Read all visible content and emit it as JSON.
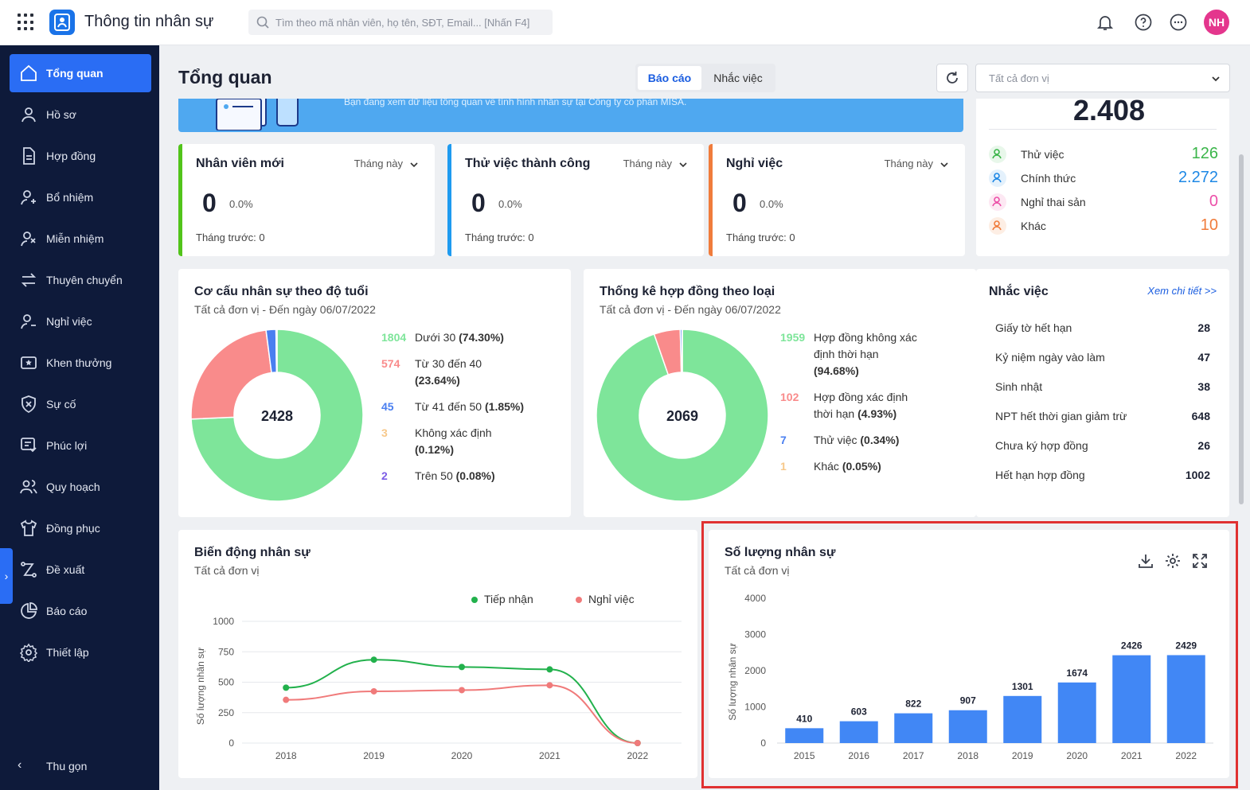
{
  "app": {
    "title": "Thông tin nhân sự",
    "avatar_initials": "NH",
    "avatar_color": "#e4368d"
  },
  "search": {
    "placeholder": "Tìm theo mã nhân viên, họ tên, SĐT, Email... [Nhấn F4]"
  },
  "sidebar": {
    "items": [
      {
        "label": "Tổng quan",
        "icon": "home-icon",
        "active": true
      },
      {
        "label": "Hồ sơ",
        "icon": "user-icon"
      },
      {
        "label": "Hợp đồng",
        "icon": "document-icon"
      },
      {
        "label": "Bổ nhiệm",
        "icon": "user-add-icon"
      },
      {
        "label": "Miễn nhiệm",
        "icon": "user-remove-icon"
      },
      {
        "label": "Thuyên chuyển",
        "icon": "transfer-icon"
      },
      {
        "label": "Nghỉ việc",
        "icon": "user-leave-icon"
      },
      {
        "label": "Khen thưởng",
        "icon": "award-icon"
      },
      {
        "label": "Sự cố",
        "icon": "shield-alert-icon"
      },
      {
        "label": "Phúc lợi",
        "icon": "benefit-icon"
      },
      {
        "label": "Quy hoạch",
        "icon": "users-icon"
      },
      {
        "label": "Đồng phục",
        "icon": "shirt-icon"
      },
      {
        "label": "Đề xuất",
        "icon": "proposal-icon"
      },
      {
        "label": "Báo cáo",
        "icon": "pie-chart-icon"
      },
      {
        "label": "Thiết lập",
        "icon": "gear-icon"
      }
    ],
    "collapse_label": "Thu gọn"
  },
  "header": {
    "title": "Tổng quan",
    "tabs": [
      {
        "label": "Báo cáo",
        "active": true
      },
      {
        "label": "Nhắc việc"
      }
    ],
    "unit_select": "Tất cả đơn vị"
  },
  "banner": {
    "text": "Bạn đang xem dữ liệu tổng quan về tình hình nhân sự tại Công ty cổ phần MISA."
  },
  "stats": [
    {
      "title": "Nhân viên mới",
      "period": "Tháng này",
      "value": "0",
      "percent": "0.0%",
      "previous": "Tháng trước: 0",
      "color": "#52c41a"
    },
    {
      "title": "Thử việc thành công",
      "period": "Tháng này",
      "value": "0",
      "percent": "0.0%",
      "previous": "Tháng trước: 0",
      "color": "#1e9bf0"
    },
    {
      "title": "Nghỉ việc",
      "period": "Tháng này",
      "value": "0",
      "percent": "0.0%",
      "previous": "Tháng trước: 0",
      "color": "#f07c3c"
    }
  ],
  "summary": {
    "total": "2.408",
    "rows": [
      {
        "label": "Thử việc",
        "value": "126",
        "color": "#3bb54a",
        "bg": "#e8f7ea"
      },
      {
        "label": "Chính thức",
        "value": "2.272",
        "color": "#1e88e5",
        "bg": "#e4f1fc"
      },
      {
        "label": "Nghỉ thai sản",
        "value": "0",
        "color": "#ec4fa8",
        "bg": "#fde8f3"
      },
      {
        "label": "Khác",
        "value": "10",
        "color": "#f07c3c",
        "bg": "#fdeee4"
      }
    ]
  },
  "age_chart": {
    "title": "Cơ cấu nhân sự theo độ tuổi",
    "subtitle": "Tất cả đơn vị - Đến ngày 06/07/2022",
    "total": "2428",
    "legend": [
      {
        "count": "1804",
        "label": "Dưới 30",
        "pct": "(74.30%)",
        "color": "#7ee59a"
      },
      {
        "count": "574",
        "label": "Từ 30 đến 40",
        "pct": "(23.64%)",
        "color": "#f98b8b"
      },
      {
        "count": "45",
        "label": "Từ 41 đến 50",
        "pct": "(1.85%)",
        "color": "#4a7ff0"
      },
      {
        "count": "3",
        "label": "Không xác định",
        "pct": "(0.12%)",
        "color": "#f7c88a"
      },
      {
        "count": "2",
        "label": "Trên 50",
        "pct": "(0.08%)",
        "color": "#7b5ce6"
      }
    ]
  },
  "contract_chart": {
    "title": "Thống kê hợp đồng theo loại",
    "subtitle": "Tất cả đơn vị - Đến ngày 06/07/2022",
    "total": "2069",
    "legend": [
      {
        "count": "1959",
        "label": "Hợp đồng không xác định thời hạn",
        "pct": "(94.68%)",
        "color": "#7ee59a"
      },
      {
        "count": "102",
        "label": "Hợp đồng xác định thời hạn",
        "pct": "(4.93%)",
        "color": "#f98b8b"
      },
      {
        "count": "7",
        "label": "Thử việc",
        "pct": "(0.34%)",
        "color": "#4a7ff0"
      },
      {
        "count": "1",
        "label": "Khác",
        "pct": "(0.05%)",
        "color": "#f7c88a"
      }
    ]
  },
  "reminders": {
    "title": "Nhắc việc",
    "more": "Xem chi tiết >>",
    "rows": [
      {
        "label": "Giấy tờ hết hạn",
        "value": "28"
      },
      {
        "label": "Kỷ niệm ngày vào làm",
        "value": "47"
      },
      {
        "label": "Sinh nhật",
        "value": "38"
      },
      {
        "label": "NPT hết thời gian giảm trừ",
        "value": "648"
      },
      {
        "label": "Chưa ký hợp đồng",
        "value": "26"
      },
      {
        "label": "Hết hạn hợp đồng",
        "value": "1002"
      }
    ]
  },
  "chart_data": [
    {
      "type": "line",
      "title": "Biến động nhân sự",
      "subtitle": "Tất cả đơn vị",
      "ylabel": "Số lượng nhân sự",
      "x": [
        "2018",
        "2019",
        "2020",
        "2021",
        "2022"
      ],
      "ylim": [
        0,
        1000
      ],
      "yticks": [
        "0",
        "250",
        "500",
        "750",
        "1000"
      ],
      "legend_position": "top-right",
      "series": [
        {
          "name": "Tiếp nhận",
          "values": [
            455,
            685,
            625,
            605,
            0
          ],
          "color": "#22b14c"
        },
        {
          "name": "Nghỉ việc",
          "values": [
            355,
            425,
            435,
            475,
            0
          ],
          "color": "#f07a7a"
        }
      ]
    },
    {
      "type": "bar",
      "title": "Số lượng nhân sự",
      "subtitle": "Tất cả đơn vị",
      "ylabel": "Số lượng nhân sự",
      "categories": [
        "2015",
        "2016",
        "2017",
        "2018",
        "2019",
        "2020",
        "2021",
        "2022"
      ],
      "values": [
        410,
        603,
        822,
        907,
        1301,
        1674,
        2426,
        2429
      ],
      "ylim": [
        0,
        4000
      ],
      "yticks": [
        "0",
        "1000",
        "2000",
        "3000",
        "4000"
      ],
      "color": "#4187f5"
    }
  ]
}
